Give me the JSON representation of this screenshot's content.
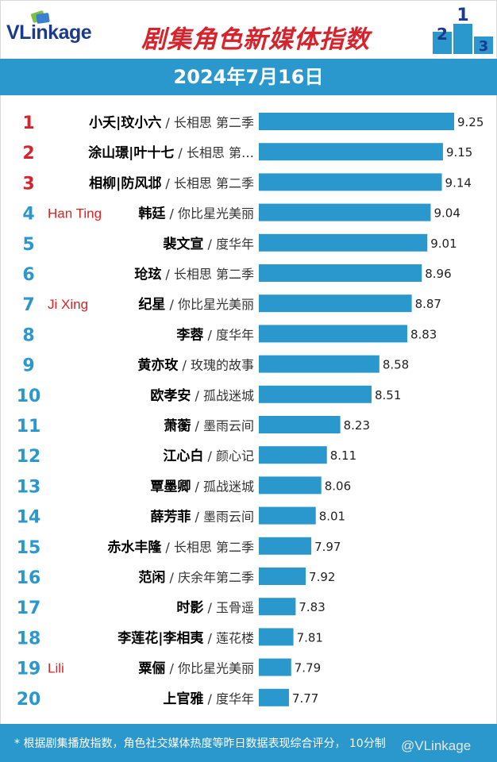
{
  "header": {
    "logo_text": "VLinkage",
    "title": "剧集角色新媒体指数",
    "date": "2024年7月16日"
  },
  "footer": {
    "note": "* 根据剧集播放指数，角色社交媒体热度等昨日数据表现综合评分， 10分制",
    "watermark": "@VLinkage"
  },
  "colors": {
    "bar": "#2a98cc",
    "rank_top3": "#d6232c",
    "rank_other": "#2a98cc",
    "annotation": "#e02020"
  },
  "chart_data": {
    "type": "bar",
    "orientation": "horizontal",
    "title": "剧集角色新媒体指数",
    "subtitle": "2024年7月16日",
    "xlim": [
      7.5,
      9.3
    ],
    "rows": [
      {
        "rank": "1",
        "role": "小夭|玟小六",
        "show": "长相思 第二季",
        "value": 9.25,
        "annotation": ""
      },
      {
        "rank": "2",
        "role": "涂山璟|叶十七",
        "show": "长相思 第…",
        "value": 9.15,
        "annotation": ""
      },
      {
        "rank": "3",
        "role": "相柳|防风邶",
        "show": "长相思 第二季",
        "value": 9.14,
        "annotation": ""
      },
      {
        "rank": "4",
        "role": "韩廷",
        "show": "你比星光美丽",
        "value": 9.04,
        "annotation": "Han Ting"
      },
      {
        "rank": "5",
        "role": "裴文宣",
        "show": "度华年",
        "value": 9.01,
        "annotation": ""
      },
      {
        "rank": "6",
        "role": "玱玹",
        "show": "长相思 第二季",
        "value": 8.96,
        "annotation": ""
      },
      {
        "rank": "7",
        "role": "纪星",
        "show": "你比星光美丽",
        "value": 8.87,
        "annotation": "Ji Xing"
      },
      {
        "rank": "8",
        "role": "李蓉",
        "show": "度华年",
        "value": 8.83,
        "annotation": ""
      },
      {
        "rank": "9",
        "role": "黄亦玫",
        "show": "玫瑰的故事",
        "value": 8.58,
        "annotation": ""
      },
      {
        "rank": "10",
        "role": "欧孝安",
        "show": "孤战迷城",
        "value": 8.51,
        "annotation": ""
      },
      {
        "rank": "11",
        "role": "萧蘅",
        "show": "墨雨云间",
        "value": 8.23,
        "annotation": ""
      },
      {
        "rank": "12",
        "role": "江心白",
        "show": "颜心记",
        "value": 8.11,
        "annotation": ""
      },
      {
        "rank": "13",
        "role": "覃墨卿",
        "show": "孤战迷城",
        "value": 8.06,
        "annotation": ""
      },
      {
        "rank": "14",
        "role": "薛芳菲",
        "show": "墨雨云间",
        "value": 8.01,
        "annotation": ""
      },
      {
        "rank": "15",
        "role": "赤水丰隆",
        "show": "长相思 第二季",
        "value": 7.97,
        "annotation": ""
      },
      {
        "rank": "16",
        "role": "范闲",
        "show": "庆余年第二季",
        "value": 7.92,
        "annotation": ""
      },
      {
        "rank": "17",
        "role": "时影",
        "show": "玉骨遥",
        "value": 7.83,
        "annotation": ""
      },
      {
        "rank": "18",
        "role": "李莲花|李相夷",
        "show": "莲花楼",
        "value": 7.81,
        "annotation": ""
      },
      {
        "rank": "19",
        "role": "粟俪",
        "show": "你比星光美丽",
        "value": 7.79,
        "annotation": "Lili"
      },
      {
        "rank": "20",
        "role": "上官雅",
        "show": "度华年",
        "value": 7.77,
        "annotation": ""
      }
    ]
  }
}
